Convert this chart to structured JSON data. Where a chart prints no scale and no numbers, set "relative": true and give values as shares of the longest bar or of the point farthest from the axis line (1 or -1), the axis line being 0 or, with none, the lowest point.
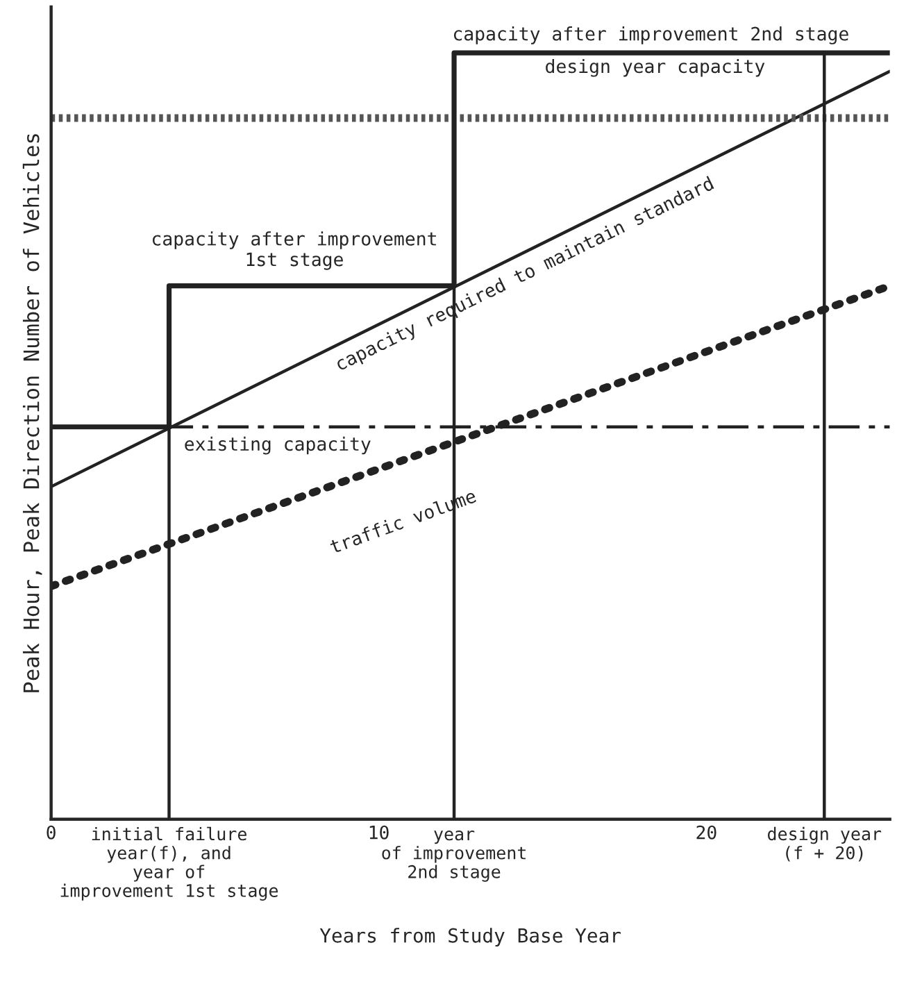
{
  "chart_data": {
    "type": "line",
    "relative": true,
    "xlabel": "Years from Study Base Year",
    "ylabel": "Peak Hour, Peak Direction Number of Vehicles",
    "xlim": [
      0,
      25.6
    ],
    "xticks": [
      0,
      10,
      20
    ],
    "grid": false,
    "series": [
      {
        "color": "#222222",
        "line_style": "solid",
        "x": [
          0,
          25.6
        ],
        "values": [
          0.434,
          0.976
        ]
      },
      {
        "color": "#222222",
        "line_style": "dotted",
        "x": [
          0,
          25.6
        ],
        "values": [
          0.304,
          0.696
        ]
      },
      {
        "color": "#222222",
        "line_style": "dashdot",
        "x": [
          0,
          25.6
        ],
        "values": [
          0.512,
          0.512
        ]
      },
      {
        "color": "#555555",
        "line_style": "hatched",
        "x": [
          0,
          25.6
        ],
        "values": [
          0.915,
          0.915
        ]
      },
      {
        "type": "step",
        "color": "#222222",
        "line_style": "solid",
        "x": [
          0,
          3.6,
          12.3,
          25.6
        ],
        "values": [
          0.512,
          0.696,
          1.0,
          1.0
        ]
      },
      {
        "color": "#222222",
        "line_style": "solid",
        "x": [
          3.6,
          3.6
        ],
        "values": [
          0,
          0.512
        ]
      },
      {
        "color": "#222222",
        "line_style": "solid",
        "x": [
          12.3,
          12.3
        ],
        "values": [
          0,
          0.696
        ]
      },
      {
        "color": "#222222",
        "line_style": "solid",
        "x": [
          23.6,
          23.6
        ],
        "values": [
          0,
          1.0
        ]
      }
    ],
    "annotations": [
      {
        "text": "initial failure\nyear(f), and\nyear of\nimprovement 1st stage",
        "x": 3.6,
        "y": 0
      },
      {
        "text": "year\nof improvement\n2nd stage",
        "x": 12.3,
        "y": 0
      },
      {
        "text": "design year\n(f + 20)",
        "x": 23.6,
        "y": 0
      },
      "capacity after improvement 2nd stage",
      "design year capacity",
      "capacity after improvement\n1st stage",
      "capacity required to maintain standard",
      "existing capacity",
      "traffic volume"
    ]
  }
}
